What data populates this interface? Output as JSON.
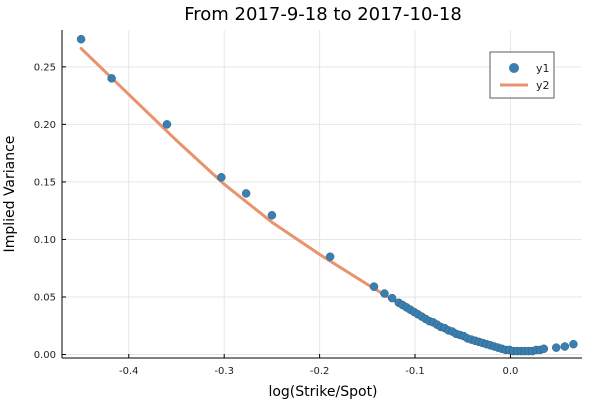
{
  "chart_data": {
    "type": "scatter",
    "title": "From 2017-9-18 to 2017-10-18",
    "xlabel": "log(Strike/Spot)",
    "ylabel": "Implied Variance",
    "xlim": [
      -0.47,
      0.075
    ],
    "ylim": [
      -0.003,
      0.282
    ],
    "xticks": [
      -0.4,
      -0.3,
      -0.2,
      -0.1,
      0.0
    ],
    "xtick_labels": [
      "-0.4",
      "-0.3",
      "-0.2",
      "-0.1",
      "0.0"
    ],
    "yticks": [
      0.0,
      0.05,
      0.1,
      0.15,
      0.2,
      0.25
    ],
    "ytick_labels": [
      "0.00",
      "0.05",
      "0.10",
      "0.15",
      "0.20",
      "0.25"
    ],
    "grid": true,
    "legend_position": "top-right",
    "series": [
      {
        "name": "y1",
        "kind": "scatter",
        "color": "#3a7fb0",
        "x": [
          -0.45,
          -0.418,
          -0.36,
          -0.303,
          -0.277,
          -0.25,
          -0.189,
          -0.143,
          -0.132,
          -0.124,
          -0.117,
          -0.113,
          -0.109,
          -0.105,
          -0.101,
          -0.097,
          -0.093,
          -0.089,
          -0.085,
          -0.081,
          -0.077,
          -0.073,
          -0.069,
          -0.065,
          -0.061,
          -0.057,
          -0.053,
          -0.049,
          -0.045,
          -0.041,
          -0.037,
          -0.033,
          -0.029,
          -0.025,
          -0.021,
          -0.017,
          -0.013,
          -0.009,
          -0.005,
          -0.001,
          0.003,
          0.007,
          0.011,
          0.015,
          0.019,
          0.023,
          0.027,
          0.031,
          0.035,
          0.048,
          0.057,
          0.066
        ],
        "y": [
          0.274,
          0.24,
          0.2,
          0.154,
          0.14,
          0.121,
          0.085,
          0.059,
          0.053,
          0.049,
          0.045,
          0.043,
          0.041,
          0.039,
          0.037,
          0.035,
          0.033,
          0.031,
          0.029,
          0.028,
          0.026,
          0.024,
          0.023,
          0.021,
          0.02,
          0.018,
          0.017,
          0.016,
          0.014,
          0.013,
          0.012,
          0.011,
          0.01,
          0.009,
          0.008,
          0.007,
          0.006,
          0.005,
          0.004,
          0.004,
          0.003,
          0.003,
          0.003,
          0.003,
          0.003,
          0.003,
          0.004,
          0.004,
          0.005,
          0.006,
          0.007,
          0.009
        ]
      },
      {
        "name": "y2",
        "kind": "line",
        "color": "#e8936c",
        "x": [
          -0.45,
          -0.4,
          -0.35,
          -0.3,
          -0.25,
          -0.2,
          -0.15,
          -0.12,
          -0.1,
          -0.08,
          -0.06,
          -0.04,
          -0.02,
          0.0,
          0.01,
          0.02,
          0.03
        ],
        "y": [
          0.266,
          0.226,
          0.186,
          0.148,
          0.115,
          0.087,
          0.061,
          0.046,
          0.037,
          0.028,
          0.02,
          0.013,
          0.008,
          0.004,
          0.003,
          0.003,
          0.004
        ]
      }
    ]
  }
}
